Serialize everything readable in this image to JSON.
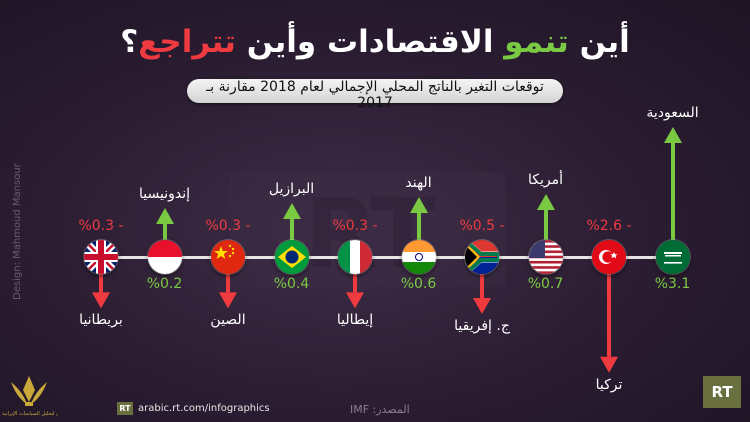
{
  "title": {
    "part1": "أين ",
    "grow_word": "تنمو",
    "part2": " الاقتصادات وأين ",
    "decline_word": "تتراجع",
    "qmark": "؟"
  },
  "subtitle": "توقعات التغير بالناتج المحلي الإجمالي لعام 2018 مقارنة بـ 2017",
  "colors": {
    "positive": "#7ac943",
    "negative": "#ef3b40",
    "axis": "#e6e6e6"
  },
  "chart_data": {
    "type": "bar",
    "title": "أين تنمو الاقتصادات وأين تتراجع؟",
    "subtitle": "توقعات التغير بالناتج المحلي الإجمالي لعام 2018 مقارنة بـ 2017",
    "unit": "%",
    "categories": [
      "بريطانيا",
      "إندونيسيا",
      "الصين",
      "البرازيل",
      "إيطاليا",
      "الهند",
      "ج. إفريقيا",
      "أمريكا",
      "تركيا",
      "السعودية"
    ],
    "values": [
      -0.3,
      0.2,
      -0.3,
      0.4,
      -0.3,
      0.6,
      -0.5,
      0.7,
      -2.6,
      3.1
    ],
    "value_labels": [
      "- %0.3",
      "%0.2",
      "- %0.3",
      "%0.4",
      "- %0.3",
      "%0.6",
      "- %0.5",
      "%0.7",
      "- %2.6",
      "%3.1"
    ],
    "flags": [
      "uk-flag",
      "indonesia-flag",
      "china-flag",
      "brazil-flag",
      "italy-flag",
      "india-flag",
      "south-africa-flag",
      "usa-flag",
      "turkey-flag",
      "saudi-flag"
    ]
  },
  "credit": "Design: Mahmoud Mansour",
  "emblem_text": "المنتدى العربي لتحليل السياسات الإيرانية",
  "footer": {
    "logo": "RT",
    "url": "arabic.rt.com/infographics",
    "source": "المصدر: IMF"
  },
  "watermark": "RT",
  "corner_logo": "RT"
}
